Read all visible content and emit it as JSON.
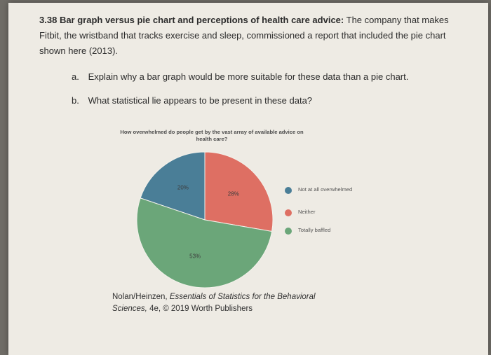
{
  "problem": {
    "number": "3.38",
    "title": "Bar graph versus pie chart and perceptions of health care advice:",
    "text": "The company that makes Fitbit, the wristband that tracks exercise and sleep, commissioned a report that included the pie chart shown here (2013)."
  },
  "parts": [
    {
      "letter": "a.",
      "text": "Explain why a bar graph would be more suitable for these data than a pie chart."
    },
    {
      "letter": "b.",
      "text": "What statistical lie appears to be present in these data?"
    }
  ],
  "chart_data": {
    "type": "pie",
    "title": "How overwhelmed do people get by the vast array of available advice on health care?",
    "slices": [
      {
        "label": "Not at all overwhelmed",
        "value": 20,
        "display": "20%",
        "color": "#4a7e97"
      },
      {
        "label": "Neither",
        "value": 28,
        "display": "28%",
        "color": "#de6f63"
      },
      {
        "label": "Totally baffled",
        "value": 53,
        "display": "53%",
        "color": "#6ba679"
      }
    ]
  },
  "credit": {
    "authors": "Nolan/Heinzen,",
    "book": "Essentials of Statistics for the Behavioral Sciences,",
    "edition": "4e, © 2019 Worth Publishers"
  }
}
